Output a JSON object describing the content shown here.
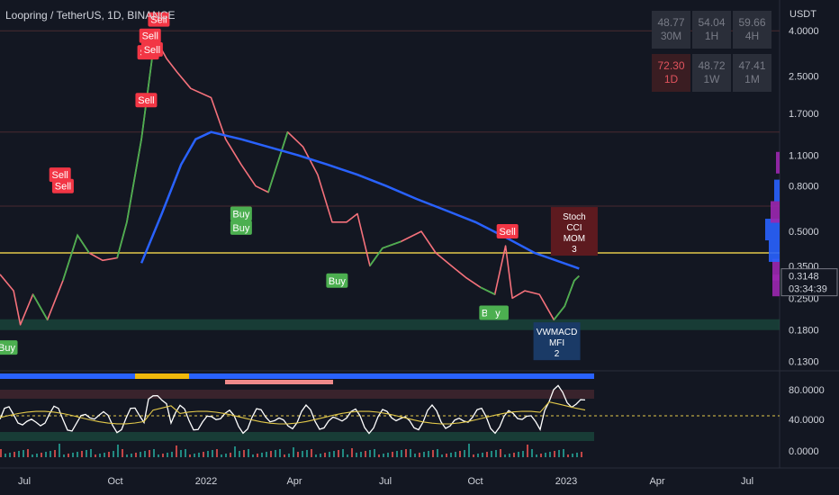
{
  "header": {
    "title": "Loopring / TetherUS, 1D, BINANCE"
  },
  "axis": {
    "unit": "USDT"
  },
  "rsi_table": [
    [
      {
        "value": "48.77",
        "tf": "30M",
        "tone": "gray"
      },
      {
        "value": "54.04",
        "tf": "1H",
        "tone": "gray"
      },
      {
        "value": "59.66",
        "tf": "4H",
        "tone": "gray"
      }
    ],
    [
      {
        "value": "72.30",
        "tf": "1D",
        "tone": "red"
      },
      {
        "value": "48.72",
        "tf": "1W",
        "tone": "gray"
      },
      {
        "value": "47.41",
        "tf": "1M",
        "tone": "gray"
      }
    ]
  ],
  "chart_data": {
    "type": "line",
    "scale": "log",
    "ylim": [
      0.12,
      4.4
    ],
    "price_ticks": [
      "4.0000",
      "2.5000",
      "1.7000",
      "1.1000",
      "0.8000",
      "0.5000",
      "0.3500",
      "0.2500",
      "0.1800",
      "0.1300"
    ],
    "x_labels": [
      "Jul",
      "Oct",
      "2022",
      "Apr",
      "Jul",
      "Oct",
      "2023",
      "Apr",
      "Jul"
    ],
    "current_price": "0.3148",
    "countdown": "03:34:39",
    "price_series": [
      [
        "2021-06-01",
        0.32
      ],
      [
        "2021-06-15",
        0.27
      ],
      [
        "2021-06-22",
        0.19
      ],
      [
        "2021-07-05",
        0.26
      ],
      [
        "2021-07-20",
        0.2
      ],
      [
        "2021-08-05",
        0.3
      ],
      [
        "2021-08-20",
        0.48
      ],
      [
        "2021-09-01",
        0.4
      ],
      [
        "2021-09-15",
        0.37
      ],
      [
        "2021-09-30",
        0.38
      ],
      [
        "2021-10-10",
        0.55
      ],
      [
        "2021-10-25",
        1.3
      ],
      [
        "2021-11-05",
        3.0
      ],
      [
        "2021-11-10",
        3.6
      ],
      [
        "2021-11-20",
        3.0
      ],
      [
        "2021-12-01",
        2.6
      ],
      [
        "2021-12-15",
        2.2
      ],
      [
        "2022-01-05",
        2.0
      ],
      [
        "2022-01-20",
        1.3
      ],
      [
        "2022-02-05",
        1.0
      ],
      [
        "2022-02-20",
        0.8
      ],
      [
        "2022-03-05",
        0.75
      ],
      [
        "2022-03-25",
        1.4
      ],
      [
        "2022-04-10",
        1.2
      ],
      [
        "2022-04-25",
        0.9
      ],
      [
        "2022-05-10",
        0.55
      ],
      [
        "2022-05-25",
        0.55
      ],
      [
        "2022-06-05",
        0.6
      ],
      [
        "2022-06-18",
        0.35
      ],
      [
        "2022-07-01",
        0.42
      ],
      [
        "2022-07-20",
        0.45
      ],
      [
        "2022-08-10",
        0.5
      ],
      [
        "2022-08-25",
        0.4
      ],
      [
        "2022-09-10",
        0.35
      ],
      [
        "2022-09-25",
        0.31
      ],
      [
        "2022-10-10",
        0.28
      ],
      [
        "2022-10-25",
        0.26
      ],
      [
        "2022-11-05",
        0.43
      ],
      [
        "2022-11-12",
        0.25
      ],
      [
        "2022-11-25",
        0.27
      ],
      [
        "2022-12-10",
        0.26
      ],
      [
        "2022-12-25",
        0.2
      ],
      [
        "2023-01-05",
        0.23
      ],
      [
        "2023-01-15",
        0.3
      ],
      [
        "2023-01-20",
        0.3148
      ]
    ],
    "ma_series": [
      [
        "2021-10-25",
        0.36
      ],
      [
        "2021-11-15",
        0.6
      ],
      [
        "2021-12-05",
        1.0
      ],
      [
        "2021-12-20",
        1.3
      ],
      [
        "2022-01-05",
        1.4
      ],
      [
        "2022-02-05",
        1.3
      ],
      [
        "2022-03-05",
        1.2
      ],
      [
        "2022-04-05",
        1.1
      ],
      [
        "2022-05-05",
        1.0
      ],
      [
        "2022-06-05",
        0.9
      ],
      [
        "2022-07-05",
        0.8
      ],
      [
        "2022-08-05",
        0.7
      ],
      [
        "2022-09-05",
        0.62
      ],
      [
        "2022-10-05",
        0.55
      ],
      [
        "2022-11-05",
        0.47
      ],
      [
        "2022-12-05",
        0.4
      ],
      [
        "2023-01-20",
        0.34
      ]
    ],
    "horizontal_levels": [
      {
        "price": 0.4,
        "color": "#e3c94a"
      },
      {
        "price": 0.19,
        "color": "#1b4d3e",
        "band": true
      },
      {
        "price": 4.0,
        "color": "#4a2a30"
      },
      {
        "price": 1.4,
        "color": "#4a2a30"
      },
      {
        "price": 0.65,
        "color": "#4a2a30"
      }
    ],
    "signals": [
      {
        "date": "2021-11-12",
        "price": 4.5,
        "label": "Sell",
        "kind": "sell"
      },
      {
        "date": "2021-11-03",
        "price": 3.8,
        "label": "Sell",
        "kind": "sell"
      },
      {
        "date": "2021-11-01",
        "price": 3.2,
        "label": "Sell",
        "kind": "sell"
      },
      {
        "date": "2021-11-05",
        "price": 3.3,
        "label": "Sell",
        "kind": "sell"
      },
      {
        "date": "2021-10-30",
        "price": 1.95,
        "label": "Sell",
        "kind": "sell"
      },
      {
        "date": "2021-08-02",
        "price": 0.9,
        "label": "Sell",
        "kind": "sell"
      },
      {
        "date": "2021-08-05",
        "price": 0.8,
        "label": "Sell",
        "kind": "sell"
      },
      {
        "date": "2022-11-07",
        "price": 0.5,
        "label": "Sell",
        "kind": "sell"
      },
      {
        "date": "2021-06-08",
        "price": 0.15,
        "label": "Buy",
        "kind": "buy"
      },
      {
        "date": "2022-02-05",
        "price": 0.6,
        "label": "Buy",
        "kind": "buy"
      },
      {
        "date": "2022-02-05",
        "price": 0.52,
        "label": "Buy",
        "kind": "buy"
      },
      {
        "date": "2022-05-15",
        "price": 0.3,
        "label": "Buy",
        "kind": "buy"
      },
      {
        "date": "2022-10-20",
        "price": 0.215,
        "label": "Buy",
        "kind": "buy"
      },
      {
        "date": "2022-10-28",
        "price": 0.215,
        "label": "y",
        "kind": "buy"
      }
    ],
    "annotations": [
      {
        "date": "2023-01-15",
        "price": 0.5,
        "lines": [
          "Stoch",
          "CCI",
          "MOM",
          "3"
        ],
        "color": "#5d1a1f"
      },
      {
        "date": "2022-12-28",
        "price": 0.16,
        "lines": [
          "VWMACD",
          "MFI",
          "2"
        ],
        "color": "#1a3a66"
      }
    ],
    "oscillator": {
      "yticks": [
        "80.0000",
        "40.0000",
        "0.0000"
      ],
      "ylim": [
        0,
        100
      ]
    }
  }
}
